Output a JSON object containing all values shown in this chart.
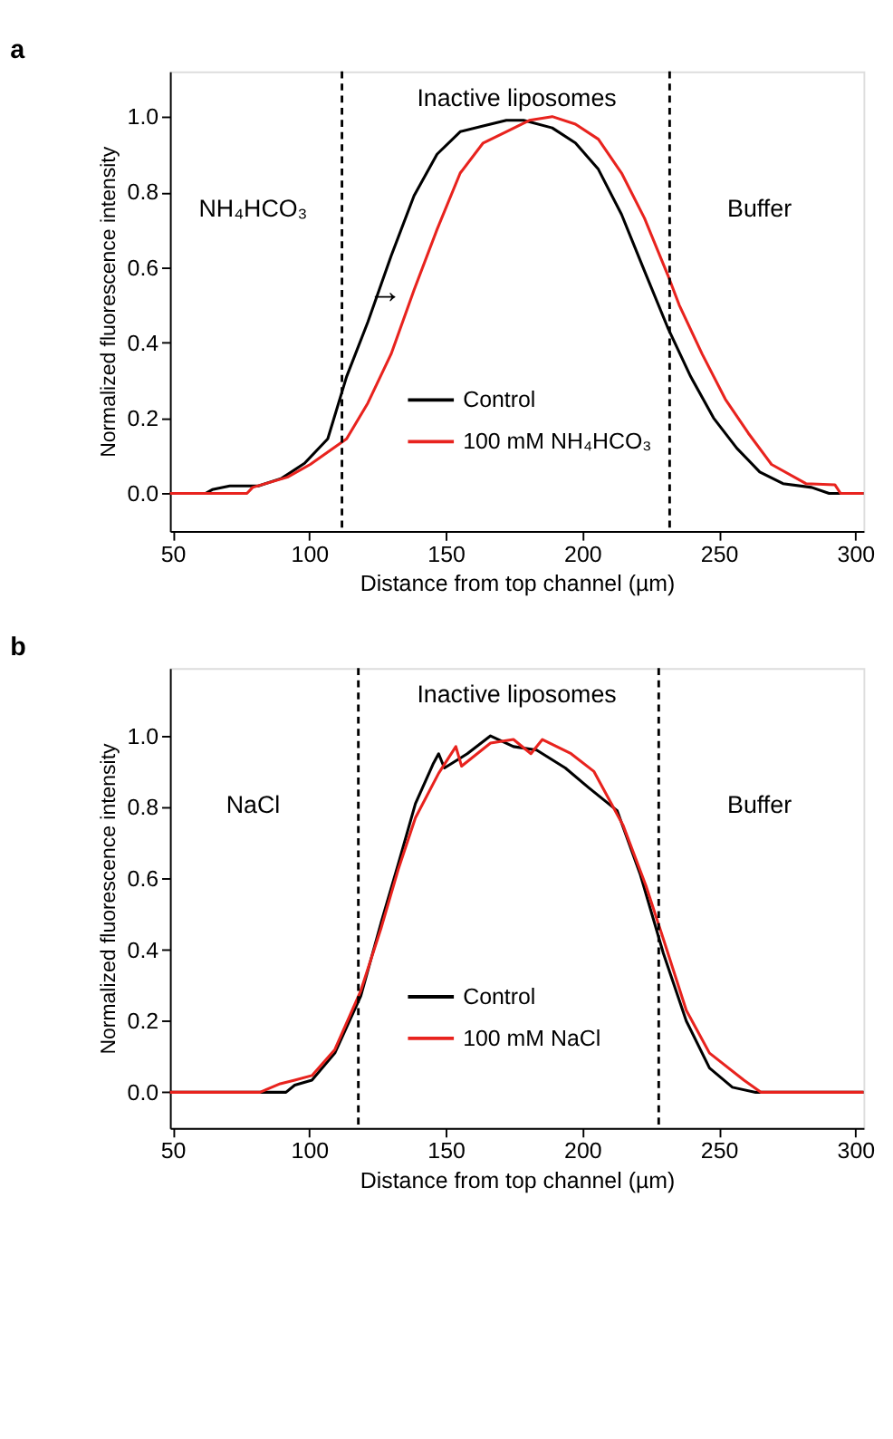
{
  "chart_data": [
    {
      "type": "line",
      "title": "a",
      "xlabel": "Distance from top channel (µm)",
      "ylabel": "Normalized fluorescence intensity",
      "xlim": [
        49,
        303
      ],
      "xticks": [
        50,
        100,
        150,
        200,
        250,
        300
      ],
      "ylim": [
        -0.1,
        1.12
      ],
      "yticks": [
        {
          "value": 0,
          "label": "0.0"
        },
        {
          "value": 0.2,
          "label": "0.2"
        },
        {
          "value": 0.4,
          "label": "0.4"
        },
        {
          "value": 0.6,
          "label": "0.6"
        },
        {
          "value": 0.8,
          "label": "0.8"
        },
        {
          "value": 1.0,
          "label": "1.0"
        }
      ],
      "legend": "bottom",
      "grid": false,
      "line_style": "solid",
      "marker": "none",
      "ref_lines": [
        {
          "axis": "x",
          "value": 112,
          "line_style": "dashed",
          "color": "#000000"
        },
        {
          "axis": "x",
          "value": 232,
          "line_style": "dashed",
          "color": "#000000"
        }
      ],
      "annotations": [
        "NH₄HCO₃",
        "Inactive liposomes",
        "Buffer",
        "→"
      ],
      "series": [
        {
          "name": "Control",
          "color": "#000000",
          "x": [
            49,
            62,
            64.5,
            70.9,
            81.4,
            89.9,
            98.3,
            106.8,
            113.7,
            121.5,
            130,
            138.4,
            146.8,
            155.3,
            163.7,
            172.2,
            178.5,
            189,
            197.5,
            205.9,
            214.4,
            222.8,
            231.3,
            239.7,
            248.1,
            256.6,
            265,
            273.5,
            284,
            290.4,
            303
          ],
          "values": [
            0,
            0,
            0.01,
            0.02,
            0.02,
            0.04,
            0.08,
            0.145,
            0.31,
            0.455,
            0.63,
            0.79,
            0.9,
            0.96,
            0.975,
            0.99,
            0.99,
            0.97,
            0.93,
            0.86,
            0.74,
            0.59,
            0.44,
            0.31,
            0.2,
            0.12,
            0.057,
            0.026,
            0.016,
            0,
            0
          ]
        },
        {
          "name": "100 mM NH₄HCO₃",
          "color": "#e8231e",
          "x": [
            49,
            77.2,
            79.3,
            92,
            100.4,
            113.7,
            121.5,
            130,
            138.4,
            146.8,
            155.3,
            163.7,
            172.2,
            180.6,
            189,
            197.5,
            205.9,
            214.4,
            222.8,
            231.3,
            235.5,
            243.9,
            252.4,
            260.8,
            269.3,
            281.9,
            292.5,
            294.6,
            303
          ],
          "values": [
            0,
            0,
            0.016,
            0.043,
            0.077,
            0.145,
            0.24,
            0.37,
            0.54,
            0.7,
            0.85,
            0.93,
            0.96,
            0.99,
            1.0,
            0.98,
            0.94,
            0.85,
            0.73,
            0.58,
            0.5,
            0.37,
            0.25,
            0.16,
            0.077,
            0.026,
            0.023,
            0,
            0
          ]
        }
      ]
    },
    {
      "type": "line",
      "title": "b",
      "xlabel": "Distance from top channel (µm)",
      "ylabel": "Normalized fluorescence intensity",
      "xlim": [
        49,
        303
      ],
      "xticks": [
        50,
        100,
        150,
        200,
        250,
        300
      ],
      "ylim": [
        -0.1,
        1.19
      ],
      "yticks": [
        {
          "value": 0,
          "label": "0.0"
        },
        {
          "value": 0.2,
          "label": "0.2"
        },
        {
          "value": 0.4,
          "label": "0.4"
        },
        {
          "value": 0.6,
          "label": "0.6"
        },
        {
          "value": 0.8,
          "label": "0.8"
        },
        {
          "value": 1.0,
          "label": "1.0"
        }
      ],
      "legend": "bottom",
      "grid": false,
      "line_style": "solid",
      "marker": "none",
      "ref_lines": [
        {
          "axis": "x",
          "value": 118,
          "line_style": "dashed",
          "color": "#000000"
        },
        {
          "axis": "x",
          "value": 228,
          "line_style": "dashed",
          "color": "#000000"
        }
      ],
      "annotations": [
        "NaCl",
        "Inactive liposomes",
        "Buffer"
      ],
      "series": [
        {
          "name": "Control",
          "color": "#000000",
          "x": [
            49,
            82,
            91.5,
            94.7,
            101,
            109.4,
            118.9,
            126.3,
            132.6,
            138.9,
            145.3,
            147.4,
            149.5,
            157.9,
            166.4,
            174.8,
            183.3,
            193.8,
            202.3,
            212.8,
            221.3,
            229.7,
            238.1,
            246.6,
            255,
            263.5,
            303
          ],
          "values": [
            0,
            0,
            0,
            0.02,
            0.034,
            0.11,
            0.27,
            0.475,
            0.64,
            0.81,
            0.92,
            0.95,
            0.91,
            0.95,
            1.0,
            0.97,
            0.96,
            0.91,
            0.855,
            0.79,
            0.61,
            0.39,
            0.2,
            0.068,
            0.014,
            0,
            0
          ]
        },
        {
          "name": "100 mM NaCl",
          "color": "#e8231e",
          "x": [
            49,
            82,
            84.1,
            89.4,
            94.7,
            101,
            109.4,
            118.9,
            126.3,
            132.6,
            138.9,
            147.4,
            153.7,
            155.8,
            166.4,
            174.8,
            181.2,
            185.4,
            195.9,
            204.3,
            214.9,
            223.3,
            229.7,
            238.1,
            246.6,
            259.2,
            265.5,
            303
          ],
          "values": [
            0,
            0,
            0.007,
            0.024,
            0.034,
            0.047,
            0.12,
            0.285,
            0.46,
            0.625,
            0.77,
            0.895,
            0.97,
            0.915,
            0.98,
            0.99,
            0.95,
            0.99,
            0.95,
            0.9,
            0.75,
            0.58,
            0.43,
            0.23,
            0.11,
            0.034,
            0,
            0
          ]
        }
      ]
    }
  ]
}
